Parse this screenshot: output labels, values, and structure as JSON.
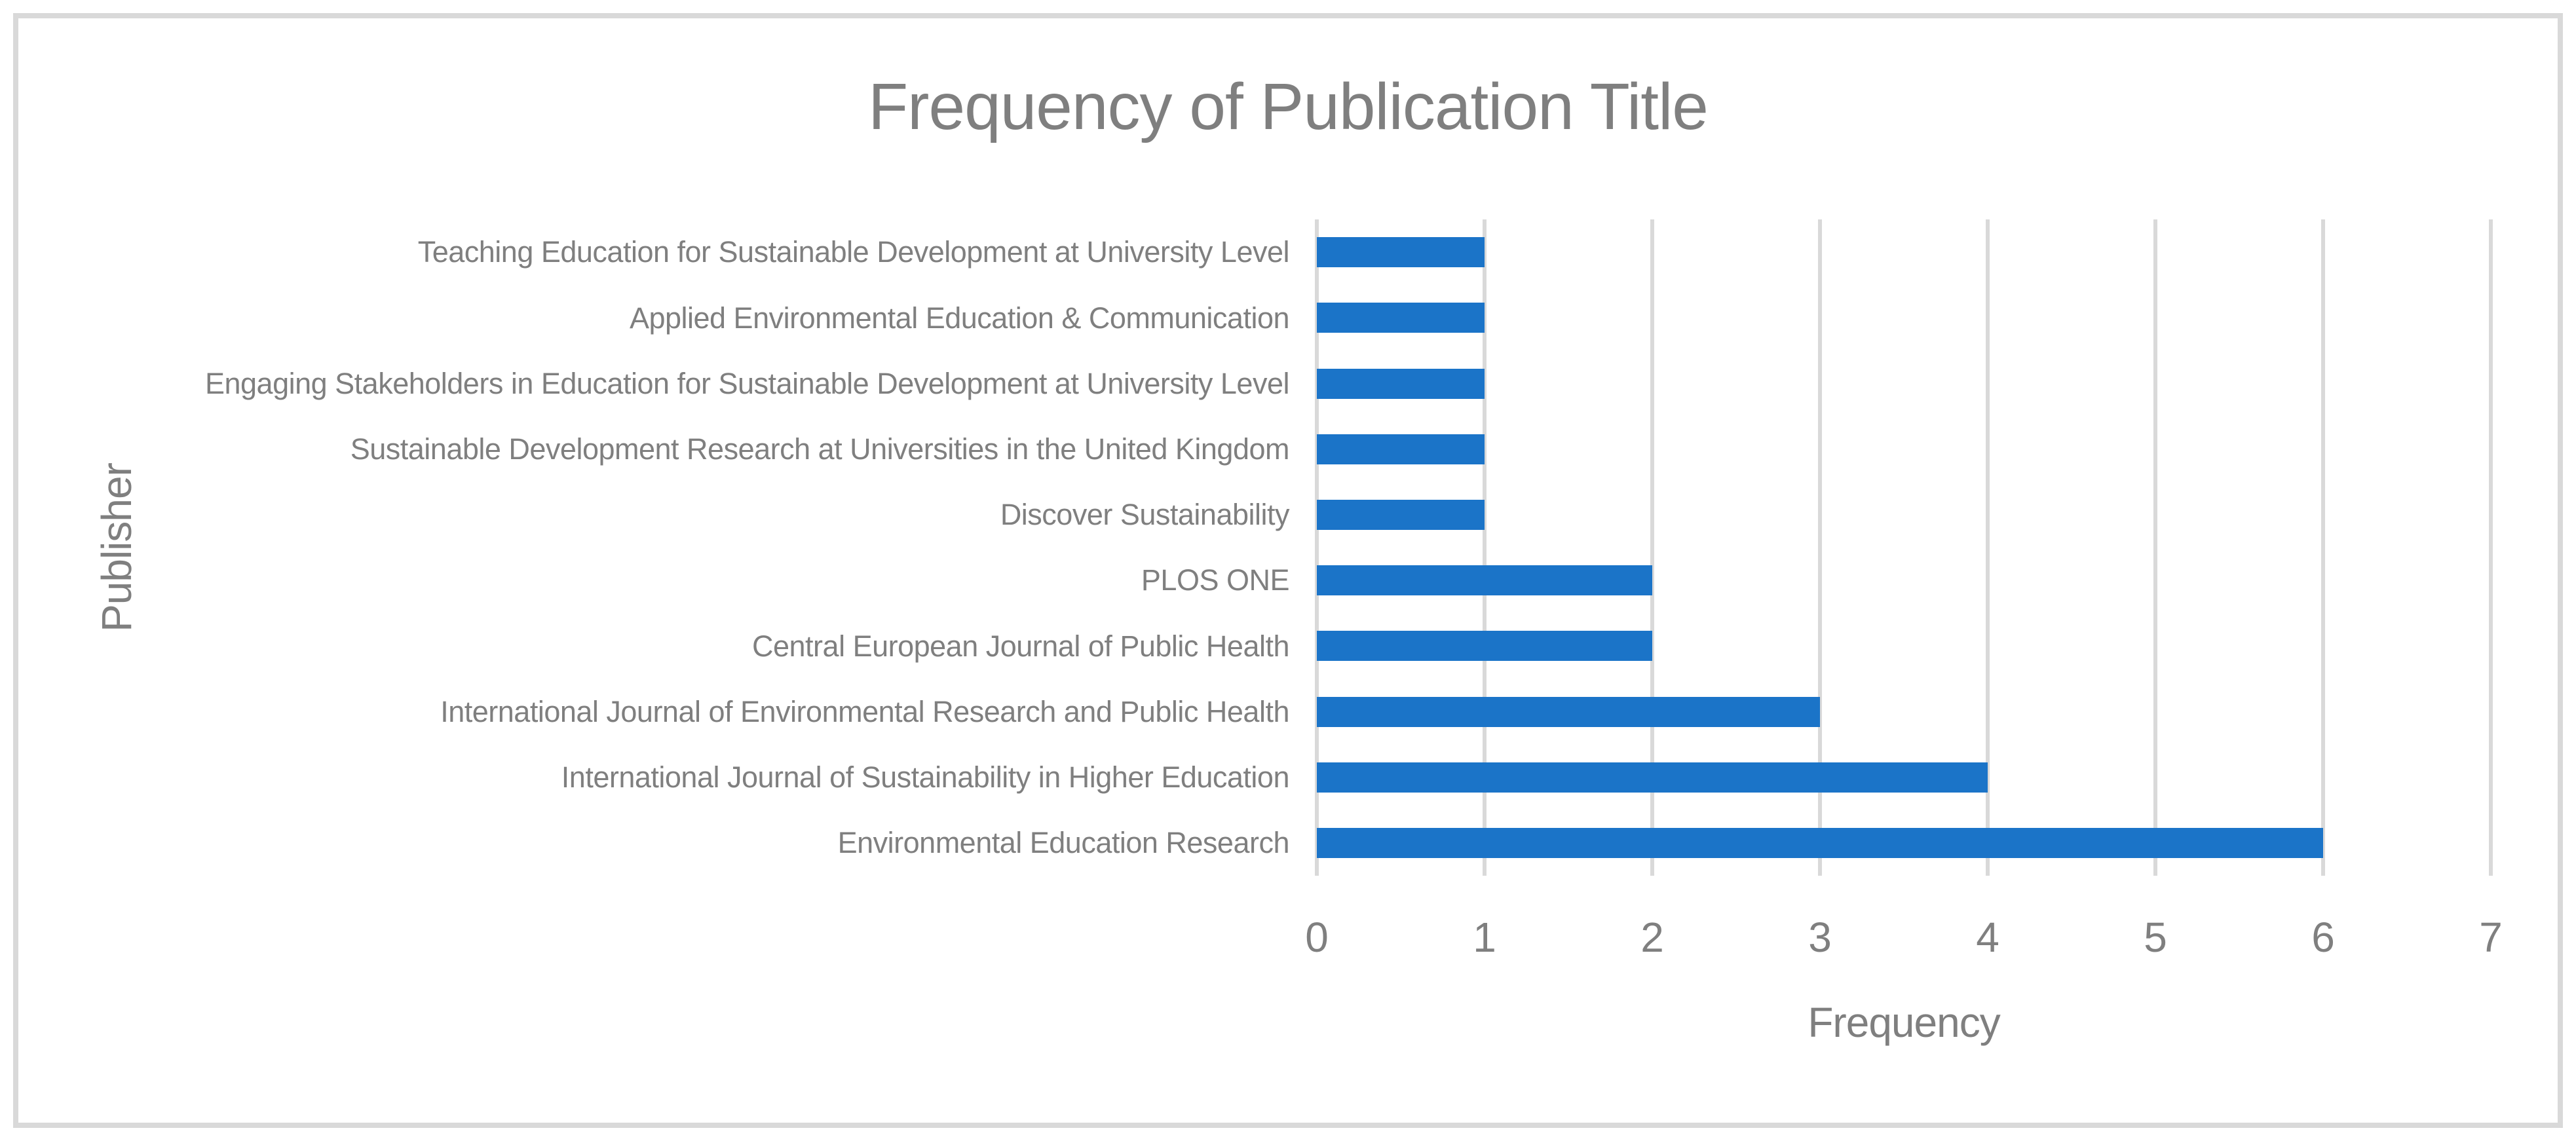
{
  "chart_data": {
    "type": "bar",
    "orientation": "horizontal",
    "title": "Frequency of Publication Title",
    "xlabel": "Frequency",
    "ylabel": "Publisher",
    "categories": [
      "Teaching Education for Sustainable Development at University Level",
      "Applied Environmental Education & Communication",
      "Engaging Stakeholders in Education for Sustainable Development at University Level",
      "Sustainable Development Research at Universities in the United Kingdom",
      "Discover Sustainability",
      "PLOS ONE",
      "Central European Journal of Public Health",
      "International Journal of Environmental Research and Public Health",
      "International Journal of Sustainability in Higher Education",
      "Environmental Education Research"
    ],
    "values": [
      1,
      1,
      1,
      1,
      1,
      2,
      2,
      3,
      4,
      6
    ],
    "xlim": [
      0,
      7
    ],
    "xticks": [
      0,
      1,
      2,
      3,
      4,
      5,
      6,
      7
    ],
    "grid": "vertical",
    "legend": false,
    "data_labels": false,
    "colors": {
      "bar": "#1B74C8",
      "gridline": "#D9D9D9",
      "frame_border": "#D9D9D9",
      "text": "#7F7F7F",
      "background": "#FFFFFF"
    }
  }
}
